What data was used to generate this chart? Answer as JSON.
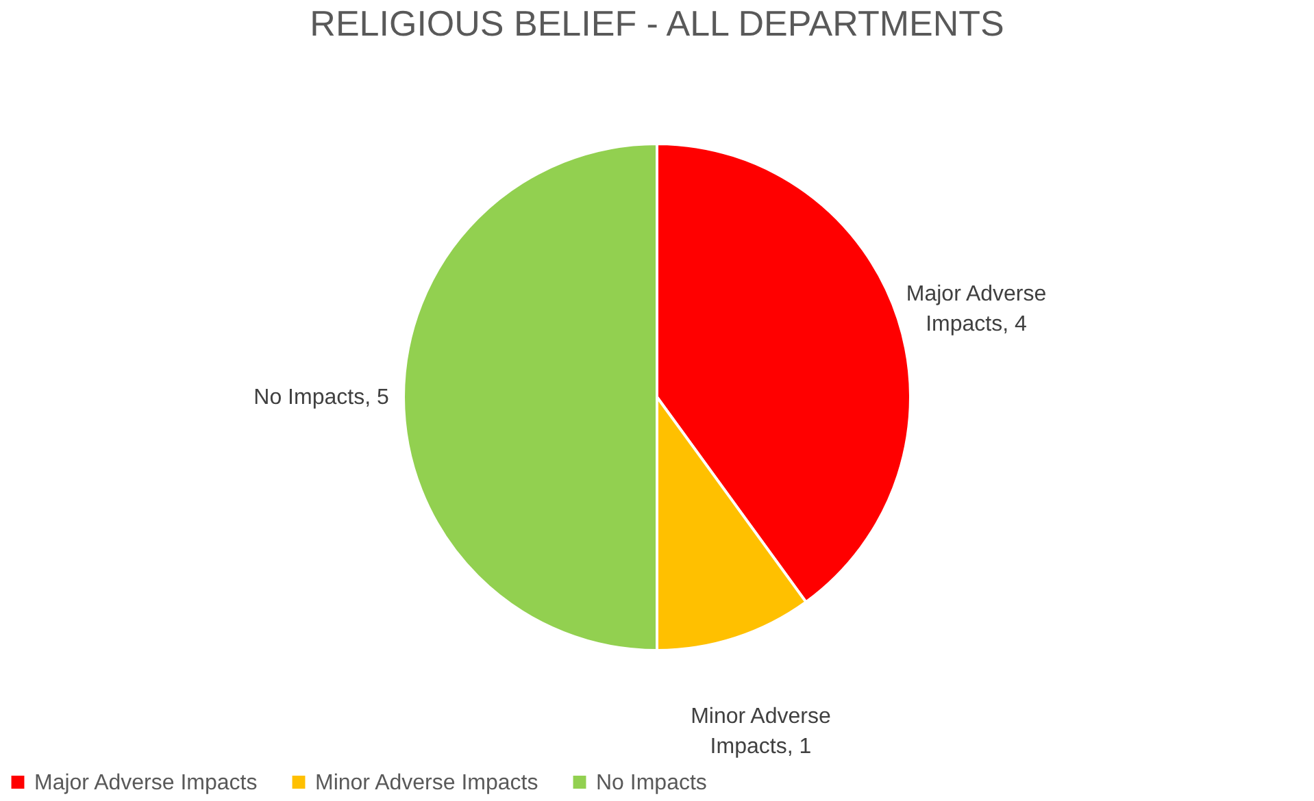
{
  "chart_data": {
    "type": "pie",
    "title": "RELIGIOUS BELIEF - ALL DEPARTMENTS",
    "categories": [
      "Major Adverse Impacts",
      "Minor Adverse Impacts",
      "No Impacts"
    ],
    "values": [
      4,
      1,
      5
    ],
    "colors": [
      "#ff0000",
      "#ffc000",
      "#92d050"
    ],
    "value_labels": [
      "Major Adverse Impacts, 4",
      "Minor Adverse Impacts, 1",
      "No Impacts, 5"
    ],
    "legend": "bottom"
  }
}
